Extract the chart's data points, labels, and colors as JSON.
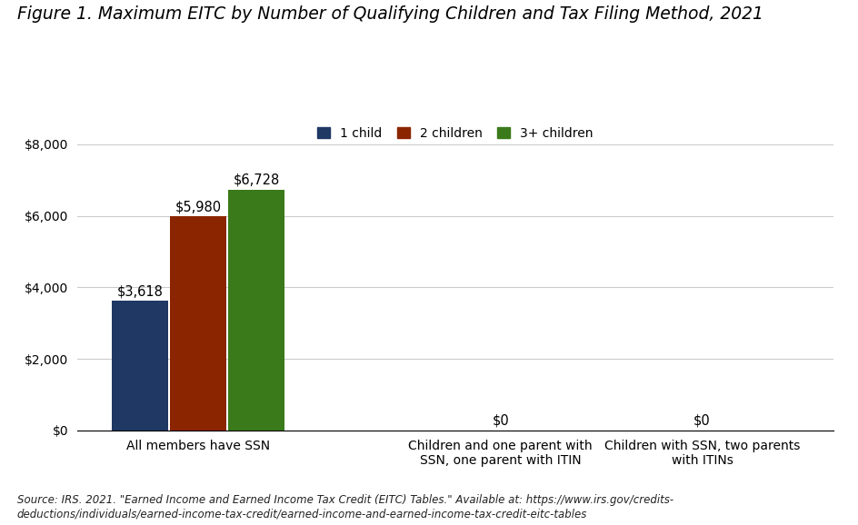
{
  "title": "Figure 1. Maximum EITC by Number of Qualifying Children and Tax Filing Method, 2021",
  "categories": [
    "All members have SSN",
    "Children and one parent with\nSSN, one parent with ITIN",
    "Children with SSN, two parents\nwith ITINs"
  ],
  "series": {
    "1 child": [
      3618,
      0,
      0
    ],
    "2 children": [
      5980,
      0,
      0
    ],
    "3+ children": [
      6728,
      0,
      0
    ]
  },
  "colors": {
    "1 child": "#1F3864",
    "2 children": "#8B2500",
    "3+ children": "#3A7A1A"
  },
  "ylim": [
    0,
    8800
  ],
  "yticks": [
    0,
    2000,
    4000,
    6000,
    8000
  ],
  "ytick_labels": [
    "$0",
    "$2,000",
    "$4,000",
    "$6,000",
    "$8,000"
  ],
  "legend_labels": [
    "1 child",
    "2 children",
    "3+ children"
  ],
  "source_text": "Source: IRS. 2021. \"Earned Income and Earned Income Tax Credit (EITC) Tables.\" Available at: https://www.irs.gov/credits-\ndeductions/individuals/earned-income-tax-credit/earned-income-and-earned-income-tax-credit-eitc-tables",
  "background_color": "#ffffff",
  "grid_color": "#cccccc",
  "bar_width": 0.28,
  "group_positions": [
    0.5,
    2.0,
    3.0
  ],
  "title_fontsize": 13.5,
  "label_fontsize": 10.5,
  "tick_fontsize": 10,
  "legend_fontsize": 10,
  "source_fontsize": 8.5
}
